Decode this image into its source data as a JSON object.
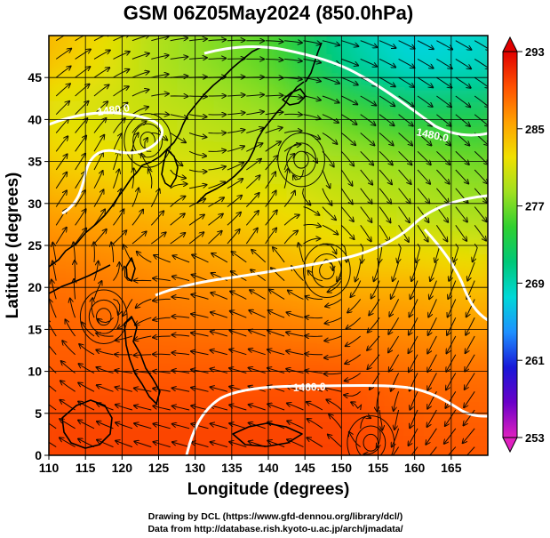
{
  "chart_data": {
    "type": "heatmap",
    "title": "GSM 06Z05May2024 (850.0hPa)",
    "xlabel": "Longitude (degrees)",
    "ylabel": "Latitude  (degrees)",
    "xlim": [
      110,
      170
    ],
    "ylim": [
      0,
      50
    ],
    "x_ticks": [
      "110",
      "115",
      "120",
      "125",
      "130",
      "135",
      "140",
      "145",
      "150",
      "155",
      "160",
      "165"
    ],
    "y_ticks": [
      "0",
      "5",
      "10",
      "15",
      "20",
      "25",
      "30",
      "35",
      "40",
      "45"
    ],
    "grid": true,
    "colorbar": {
      "range": [
        253,
        293
      ],
      "ticks": [
        "253",
        "261",
        "269",
        "277",
        "285",
        "293"
      ],
      "placement": "right",
      "colors": [
        "#e020c0",
        "#6a00c8",
        "#1818d8",
        "#1e90ff",
        "#00d8d8",
        "#00c878",
        "#30d030",
        "#a0e020",
        "#f0e000",
        "#ffa000",
        "#ff5000",
        "#e00000"
      ]
    },
    "field_samples": {
      "description_lat": [
        2,
        10,
        20,
        28,
        35,
        42,
        47
      ],
      "note_lon": [
        112,
        125,
        140,
        150,
        160,
        168
      ],
      "temperature_K": [
        [
          290,
          290,
          290,
          290,
          289,
          289
        ],
        [
          289,
          289,
          289,
          289,
          288,
          288
        ],
        [
          288,
          287,
          286,
          285,
          285,
          284
        ],
        [
          286,
          285,
          283,
          281,
          280,
          279
        ],
        [
          283,
          281,
          280,
          279,
          278,
          277
        ],
        [
          281,
          280,
          278,
          275,
          272,
          272
        ],
        [
          284,
          279,
          276,
          270,
          267,
          268
        ]
      ]
    },
    "contours": [
      {
        "label": "1460.0"
      },
      {
        "label": "1480.0"
      },
      {
        "label": "1480.0"
      }
    ],
    "vortices": [
      {
        "lon": 144.5,
        "lat": 35.2
      },
      {
        "lon": 123.5,
        "lat": 37.5
      },
      {
        "lon": 117.5,
        "lat": 16.5
      },
      {
        "lon": 154,
        "lat": 1.5
      },
      {
        "lon": 148,
        "lat": 22
      }
    ]
  },
  "credits": {
    "line1": "Drawing by DCL (https://www.gfd-dennou.org/library/dcl/)",
    "line2": "Data from http://database.rish.kyoto-u.ac.jp/arch/jmadata/"
  }
}
